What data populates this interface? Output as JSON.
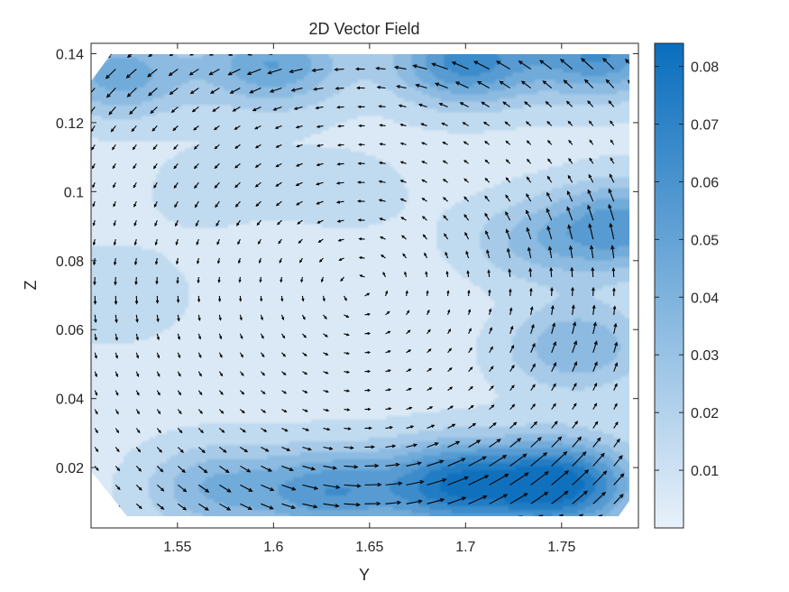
{
  "chart_data": {
    "type": "heatmap",
    "subtype": "filled-contour with quiver arrows",
    "title": "2D Vector Field",
    "xlabel": "Y",
    "ylabel": "Z",
    "xlim": [
      1.505,
      1.79
    ],
    "ylim": [
      0.0025,
      0.143
    ],
    "x_ticks": [
      1.55,
      1.6,
      1.65,
      1.7,
      1.75
    ],
    "x_tick_labels": [
      "1.55",
      "1.6",
      "1.65",
      "1.7",
      "1.75"
    ],
    "y_ticks": [
      0.02,
      0.04,
      0.06,
      0.08,
      0.1,
      0.12,
      0.14
    ],
    "y_tick_labels": [
      "0.02",
      "0.04",
      "0.06",
      "0.08",
      "0.1",
      "0.12",
      "0.14"
    ],
    "colorbar": {
      "min": 0,
      "max": 0.084,
      "ticks": [
        0.01,
        0.02,
        0.03,
        0.04,
        0.05,
        0.06,
        0.07,
        0.08
      ],
      "tick_labels": [
        "0.01",
        "0.02",
        "0.03",
        "0.04",
        "0.05",
        "0.06",
        "0.07",
        "0.08"
      ],
      "color_low": "#e8f1fa",
      "color_high": "#0a6ebd"
    },
    "contour_levels": [
      0.01,
      0.02,
      0.03,
      0.04,
      0.05,
      0.06,
      0.07,
      0.08
    ],
    "grid": false,
    "arrow_color": "#000000",
    "magnitude_features": [
      {
        "y": 1.77,
        "z": 0.14,
        "value": 0.06,
        "label": "top-right corner band"
      },
      {
        "y": 1.7,
        "z": 0.138,
        "value": 0.065,
        "label": "top band"
      },
      {
        "y": 1.6,
        "z": 0.137,
        "value": 0.05,
        "label": "top-left band"
      },
      {
        "y": 1.52,
        "z": 0.134,
        "value": 0.045,
        "label": "upper-left corner"
      },
      {
        "y": 1.75,
        "z": 0.015,
        "value": 0.084,
        "label": "bottom-right peak"
      },
      {
        "y": 1.695,
        "z": 0.015,
        "value": 0.075,
        "label": "bottom peak"
      },
      {
        "y": 1.63,
        "z": 0.013,
        "value": 0.055,
        "label": "bottom band"
      },
      {
        "y": 1.57,
        "z": 0.014,
        "value": 0.04,
        "label": "bottom-left band"
      },
      {
        "y": 1.782,
        "z": 0.09,
        "value": 0.055,
        "label": "right wall"
      },
      {
        "y": 1.758,
        "z": 0.055,
        "value": 0.04,
        "label": "right band"
      },
      {
        "y": 1.735,
        "z": 0.085,
        "value": 0.03,
        "label": "right inner pocket"
      },
      {
        "y": 1.515,
        "z": 0.07,
        "value": 0.02,
        "label": "left wall"
      },
      {
        "y": 1.57,
        "z": 0.1,
        "value": 0.015,
        "label": "upper-left pocket"
      },
      {
        "y": 1.635,
        "z": 0.1,
        "value": 0.015,
        "label": "upper-centre pocket"
      },
      {
        "y": 1.6,
        "z": 0.085,
        "value": 0.004,
        "label": "calm core"
      },
      {
        "y": 1.71,
        "z": 0.07,
        "value": 0.004,
        "label": "calm core right"
      }
    ]
  }
}
